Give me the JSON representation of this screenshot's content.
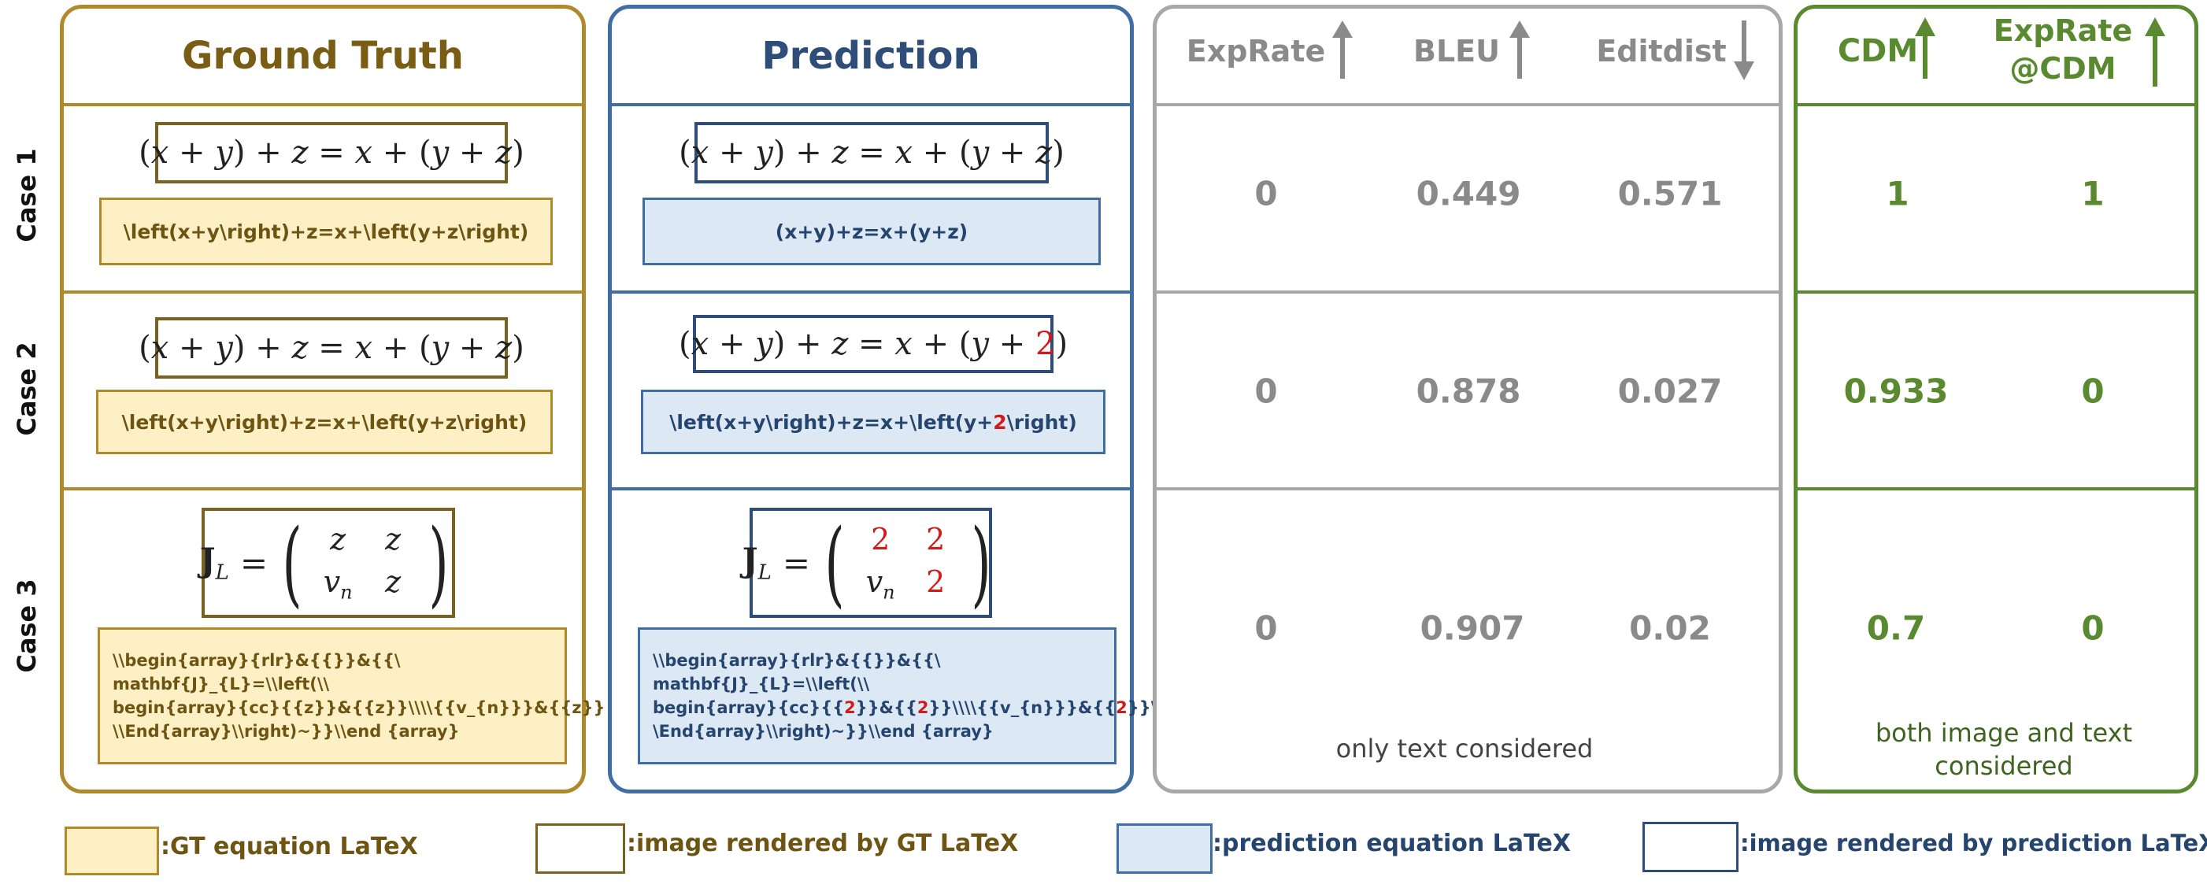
{
  "columns": {
    "gt_title": "Ground Truth",
    "pred_title": "Prediction",
    "metrics_text": [
      "ExpRate",
      "BLEU",
      "Editdist"
    ],
    "metrics_text_arrows": [
      "up",
      "up",
      "down"
    ],
    "metrics_image": [
      "CDM",
      "ExpRate",
      "@CDM"
    ],
    "metrics_image_arrows": [
      "up",
      "up"
    ]
  },
  "cases": [
    {
      "label": "Case 1",
      "gt_latex": "\\left(x+y\\right)+z=x+\\left(y+z\\right)",
      "pred_latex": "(x+y)+z=x+(y+z)",
      "expr_gt": [
        "(",
        "x",
        " + ",
        "y",
        ") + ",
        "z",
        " = ",
        "x",
        " + (",
        "y",
        " + ",
        "z",
        ")"
      ],
      "expr_pred": [
        "(",
        "x",
        " + ",
        "y",
        ") + ",
        "z",
        " = ",
        "x",
        " + (",
        "y",
        " + ",
        "z",
        ")"
      ],
      "exprate": "0",
      "bleu": "0.449",
      "editdist": "0.571",
      "cdm": "1",
      "exprate_cdm": "1"
    },
    {
      "label": "Case 2",
      "gt_latex": "\\left(x+y\\right)+z=x+\\left(y+z\\right)",
      "pred_latex_parts": [
        "\\left(x+y\\right)+z=x+\\left(y+",
        "2",
        "\\right)"
      ],
      "expr_gt": [
        "(",
        "x",
        " + ",
        "y",
        ") + ",
        "z",
        " = ",
        "x",
        " + (",
        "y",
        " + ",
        "z",
        ")"
      ],
      "expr_pred": [
        "(",
        "x",
        " + ",
        "y",
        ") + ",
        "z",
        " = ",
        "x",
        " + (",
        "y",
        " + ",
        "2",
        ")"
      ],
      "exprate": "0",
      "bleu": "0.878",
      "editdist": "0.027",
      "cdm": "0.933",
      "exprate_cdm": "0"
    },
    {
      "label": "Case 3",
      "gt_latex_lines": [
        "\\\\begin{array}{rlr}&{{}}&{{\\",
        "mathbf{J}_{L}=\\\\left(\\\\",
        "begin{array}{cc}{{z}}&{{z}}\\\\\\\\{{v_{n}}}&{{z}}",
        "\\\\End{array}\\\\right)~}}\\\\end {array}"
      ],
      "pred_latex_lines": [
        [
          "\\\\begin{array}{rlr}&{{}}&{{\\"
        ],
        [
          "mathbf{J}_{L}=\\\\left(\\\\"
        ],
        [
          "begin{array}{cc}{{",
          "2",
          "}}&{{",
          "2",
          "}}\\\\\\\\{{v_{n}}}&{{",
          "2",
          "}}\\"
        ],
        [
          "\\End{array}\\\\right)~}}\\\\end {array}"
        ]
      ],
      "matrix_lhs": "J",
      "matrix_lhs_sub": "L",
      "matrix_gt": [
        "z",
        "z",
        "v",
        "z"
      ],
      "matrix_pred": [
        "2",
        "2",
        "v",
        "2"
      ],
      "matrix_sub": "n",
      "exprate": "0",
      "bleu": "0.907",
      "editdist": "0.02",
      "cdm": "0.7",
      "exprate_cdm": "0"
    }
  ],
  "notes": {
    "text_only": "only text considered",
    "image_text_1": "both image and text",
    "image_text_2": "considered"
  },
  "legend": [
    ":GT equation LaTeX",
    ":image rendered by GT LaTeX",
    ":prediction equation LaTeX",
    ":image rendered by prediction LaTeX"
  ],
  "colors": {
    "gt": "#b08a2a",
    "gt_text": "#7a5d14",
    "pred": "#3f6da4",
    "pred_text": "#2e4d78",
    "metric_text": "#a8a8a8",
    "metric_image": "#5a8a30",
    "error": "#d11a1a"
  }
}
